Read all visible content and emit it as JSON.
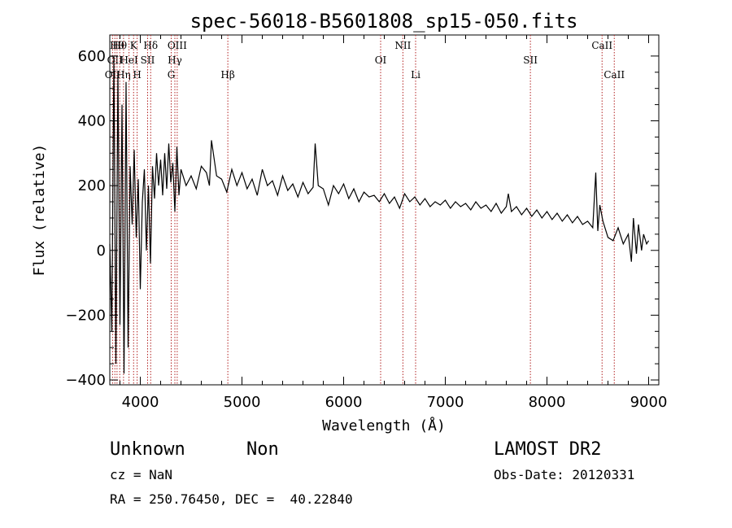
{
  "chart_data": {
    "type": "line",
    "title": "spec-56018-B5601808_sp15-050.fits",
    "xlabel": "Wavelength (Å)",
    "ylabel": "Flux (relative)",
    "xlim": [
      3700,
      9100
    ],
    "ylim": [
      -415,
      665
    ],
    "x_ticks": [
      4000,
      5000,
      6000,
      7000,
      8000,
      9000
    ],
    "y_ticks": [
      -400,
      -200,
      0,
      200,
      400,
      600
    ],
    "grid": false,
    "series": [
      {
        "x": [
          3700,
          3720,
          3740,
          3760,
          3780,
          3800,
          3820,
          3840,
          3860,
          3880,
          3900,
          3920,
          3940,
          3960,
          3980,
          4000,
          4020,
          4040,
          4060,
          4080,
          4100,
          4120,
          4140,
          4160,
          4180,
          4200,
          4220,
          4240,
          4260,
          4280,
          4300,
          4320,
          4340,
          4360,
          4380,
          4400,
          4450,
          4500,
          4550,
          4600,
          4650,
          4680,
          4700,
          4750,
          4800,
          4850,
          4900,
          4950,
          5000,
          5050,
          5100,
          5150,
          5200,
          5250,
          5300,
          5350,
          5400,
          5450,
          5500,
          5550,
          5600,
          5650,
          5700,
          5720,
          5750,
          5800,
          5850,
          5900,
          5950,
          6000,
          6050,
          6100,
          6150,
          6200,
          6250,
          6300,
          6350,
          6400,
          6450,
          6500,
          6550,
          6600,
          6650,
          6700,
          6750,
          6800,
          6850,
          6900,
          6950,
          7000,
          7050,
          7100,
          7150,
          7200,
          7250,
          7300,
          7350,
          7400,
          7450,
          7500,
          7550,
          7600,
          7620,
          7650,
          7700,
          7750,
          7800,
          7850,
          7900,
          7950,
          8000,
          8050,
          8100,
          8150,
          8200,
          8250,
          8300,
          8350,
          8400,
          8450,
          8480,
          8500,
          8520,
          8550,
          8600,
          8650,
          8700,
          8750,
          8800,
          8830,
          8850,
          8880,
          8900,
          8930,
          8950,
          8980,
          9000
        ],
        "y": [
          20,
          -250,
          600,
          -350,
          550,
          -230,
          450,
          -380,
          520,
          -300,
          260,
          80,
          310,
          40,
          220,
          -120,
          150,
          250,
          0,
          200,
          -40,
          260,
          160,
          300,
          200,
          280,
          170,
          300,
          190,
          330,
          210,
          270,
          120,
          320,
          170,
          250,
          200,
          230,
          190,
          260,
          240,
          200,
          340,
          230,
          220,
          180,
          250,
          200,
          240,
          190,
          220,
          170,
          250,
          200,
          215,
          170,
          230,
          185,
          205,
          165,
          210,
          175,
          195,
          330,
          200,
          190,
          140,
          200,
          175,
          205,
          160,
          190,
          150,
          180,
          165,
          170,
          150,
          175,
          145,
          165,
          130,
          175,
          150,
          165,
          140,
          160,
          135,
          150,
          140,
          155,
          130,
          150,
          135,
          145,
          125,
          150,
          130,
          140,
          120,
          145,
          115,
          135,
          175,
          120,
          135,
          110,
          130,
          105,
          125,
          100,
          120,
          95,
          115,
          90,
          110,
          85,
          105,
          80,
          90,
          70,
          240,
          60,
          140,
          90,
          40,
          30,
          70,
          20,
          50,
          -35,
          100,
          -10,
          80,
          0,
          50,
          20,
          30
        ]
      }
    ],
    "lines": [
      {
        "wl": 3727,
        "label": "OII",
        "row": 2
      },
      {
        "wl": 3750,
        "label": "OII",
        "row": 1
      },
      {
        "wl": 3771,
        "label": "Hθ",
        "row": 0
      },
      {
        "wl": 3798,
        "label": "Hθ",
        "row": 0
      },
      {
        "wl": 3835,
        "label": "Hη",
        "row": 2
      },
      {
        "wl": 3889,
        "label": "HeI",
        "row": 1
      },
      {
        "wl": 3934,
        "label": "K",
        "row": 0
      },
      {
        "wl": 3969,
        "label": "H",
        "row": 2
      },
      {
        "wl": 4072,
        "label": "SII",
        "row": 1
      },
      {
        "wl": 4102,
        "label": "Hδ",
        "row": 0
      },
      {
        "wl": 4304,
        "label": "G",
        "row": 2
      },
      {
        "wl": 4340,
        "label": "Hγ",
        "row": 1
      },
      {
        "wl": 4363,
        "label": "OIII",
        "row": 0
      },
      {
        "wl": 4861,
        "label": "Hβ",
        "row": 2
      },
      {
        "wl": 6364,
        "label": "OI",
        "row": 1
      },
      {
        "wl": 6583,
        "label": "NII",
        "row": 0
      },
      {
        "wl": 6708,
        "label": "Li",
        "row": 2
      },
      {
        "wl": 7837,
        "label": "SII",
        "row": 1
      },
      {
        "wl": 8542,
        "label": "CaII",
        "row": 0
      },
      {
        "wl": 8662,
        "label": "CaII",
        "row": 2
      }
    ]
  },
  "info": {
    "object_class": "Unknown",
    "object_subclass": "Non",
    "survey": "LAMOST DR2",
    "cz": "cz = NaN",
    "obs_date": "Obs-Date: 20120331",
    "coords": "RA = 250.76450, DEC =  40.22840"
  }
}
